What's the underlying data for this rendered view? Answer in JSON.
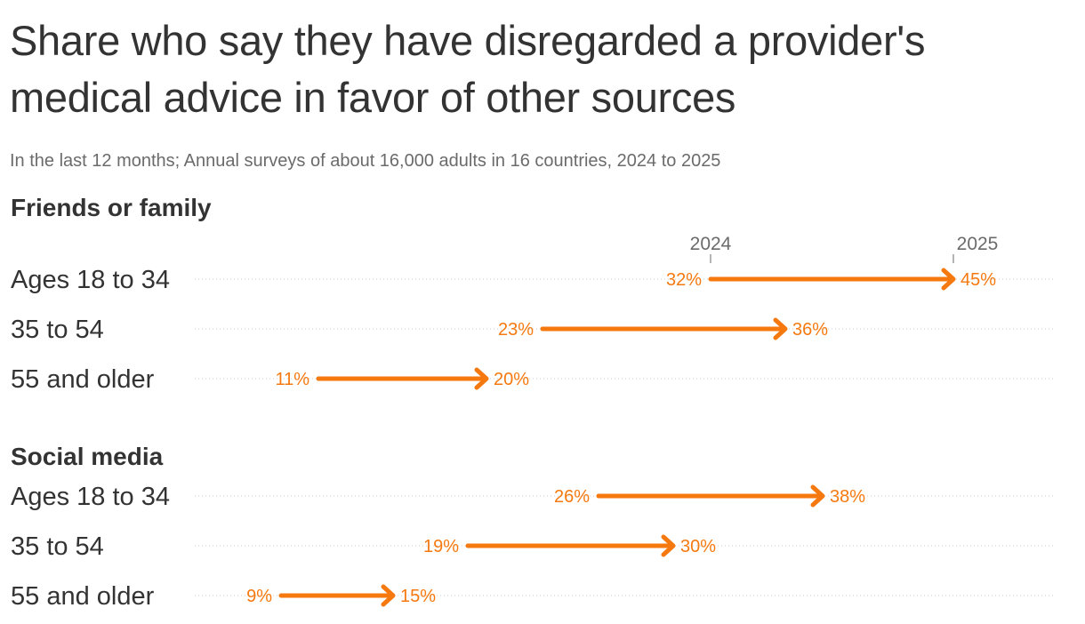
{
  "title": "Share who say they have disregarded a provider's medical advice in favor of other sources",
  "subtitle": "In the last 12 months; Annual surveys of about 16,000 adults in 16 countries, 2024 to 2025",
  "colors": {
    "accent": "#f5790f",
    "text": "#333333",
    "muted": "#6b6b6b",
    "gridline": "#cccccc"
  },
  "chart_data": {
    "type": "arrow",
    "value_unit": "%",
    "years": [
      "2024",
      "2025"
    ],
    "groups": [
      {
        "name": "Friends or family",
        "rows": [
          {
            "label": "Ages 18 to 34",
            "start": 32,
            "end": 45
          },
          {
            "label": "35 to 54",
            "start": 23,
            "end": 36
          },
          {
            "label": "55 and older",
            "start": 11,
            "end": 20
          }
        ]
      },
      {
        "name": "Social media",
        "rows": [
          {
            "label": "Ages 18 to 34",
            "start": 26,
            "end": 38
          },
          {
            "label": "35 to 54",
            "start": 19,
            "end": 30
          },
          {
            "label": "55 and older",
            "start": 9,
            "end": 15
          }
        ]
      }
    ]
  }
}
